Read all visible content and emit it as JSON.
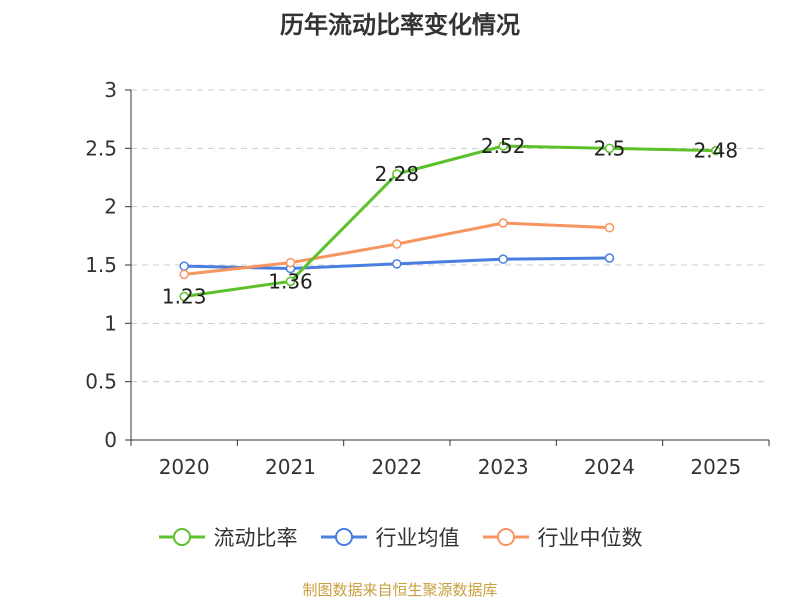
{
  "chart_data": {
    "type": "line",
    "title": "历年流动比率变化情况",
    "categories": [
      "2020",
      "2021",
      "2022",
      "2023",
      "2024",
      "2025"
    ],
    "ylim": [
      0,
      3
    ],
    "yticks": [
      0,
      0.5,
      1,
      1.5,
      2,
      2.5,
      3
    ],
    "ytick_labels": [
      "0",
      "0.5",
      "1",
      "1.5",
      "2",
      "2.5",
      "3"
    ],
    "grid": true,
    "legend_position": "bottom",
    "series": [
      {
        "name": "流动比率",
        "color": "#5cc12b",
        "values": [
          1.23,
          1.36,
          2.28,
          2.52,
          2.5,
          2.48
        ],
        "labels": [
          "1.23",
          "1.36",
          "2.28",
          "2.52",
          "2.5",
          "2.48"
        ]
      },
      {
        "name": "行业均值",
        "color": "#4a7fe0",
        "values": [
          1.49,
          1.47,
          1.51,
          1.55,
          1.56,
          null
        ]
      },
      {
        "name": "行业中位数",
        "color": "#f79560",
        "values": [
          1.42,
          1.52,
          1.68,
          1.86,
          1.82,
          null
        ]
      }
    ]
  },
  "source": "制图数据来自恒生聚源数据库"
}
